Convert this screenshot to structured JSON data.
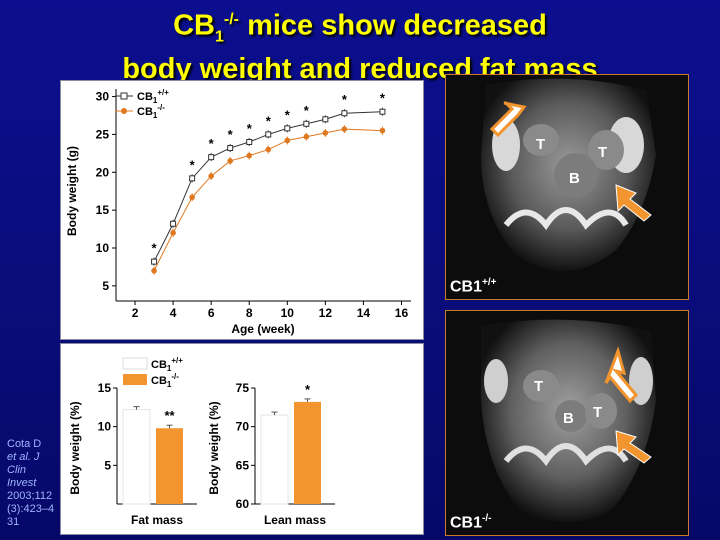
{
  "title": {
    "line1_prefix": "CB",
    "line1_sub": "1",
    "line1_sup": "-/-",
    "line1_suffix": " mice show decreased",
    "line2": "body weight and reduced fat mass"
  },
  "chart_data": [
    {
      "type": "line",
      "xlabel": "Age (week)",
      "ylabel": "Body weight (g)",
      "xlim": [
        1,
        16.5
      ],
      "ylim": [
        3,
        31
      ],
      "xticks": [
        2,
        4,
        6,
        8,
        10,
        12,
        14,
        16
      ],
      "yticks": [
        5,
        10,
        15,
        20,
        25,
        30
      ],
      "x": [
        3,
        4,
        5,
        6,
        7,
        8,
        9,
        10,
        11,
        12,
        13,
        15
      ],
      "series": [
        {
          "name": "CB1+/+",
          "legend_base": "CB",
          "legend_sub": "1",
          "legend_sup": "+/+",
          "marker": "open-square",
          "color": "#333333",
          "values": [
            8.2,
            13.2,
            19.2,
            22.0,
            23.2,
            24.0,
            25.0,
            25.8,
            26.4,
            27.0,
            27.8,
            28.0
          ]
        },
        {
          "name": "CB1-/-",
          "legend_base": "CB",
          "legend_sub": "1",
          "legend_sup": "-/-",
          "marker": "filled-circle",
          "color": "#e07820",
          "values": [
            7.0,
            12.0,
            16.7,
            19.5,
            21.5,
            22.2,
            23.0,
            24.2,
            24.7,
            25.2,
            25.7,
            25.5
          ]
        }
      ],
      "significance": [
        {
          "x": 3,
          "label": "*"
        },
        {
          "x": 5,
          "label": "*"
        },
        {
          "x": 6,
          "label": "*"
        },
        {
          "x": 7,
          "label": "*"
        },
        {
          "x": 8,
          "label": "*"
        },
        {
          "x": 9,
          "label": "*"
        },
        {
          "x": 10,
          "label": "*"
        },
        {
          "x": 11,
          "label": "*"
        },
        {
          "x": 13,
          "label": "*"
        },
        {
          "x": 15,
          "label": "*"
        }
      ]
    },
    {
      "type": "bar",
      "xlabel": "Fat mass",
      "ylabel": "Body weight (%)",
      "ylim": [
        0,
        15
      ],
      "yticks": [
        5,
        10,
        15
      ],
      "series": [
        {
          "name": "CB1+/+",
          "value": 12.2,
          "color": "#ffffff"
        },
        {
          "name": "CB1-/-",
          "value": 9.8,
          "color": "#f3952f",
          "significance": "**"
        }
      ]
    },
    {
      "type": "bar",
      "xlabel": "Lean mass",
      "ylabel": "Body weight (%)",
      "ylim": [
        60,
        75
      ],
      "yticks": [
        60,
        65,
        70,
        75
      ],
      "series": [
        {
          "name": "CB1+/+",
          "value": 71.5,
          "color": "#ffffff"
        },
        {
          "name": "CB1-/-",
          "value": 73.2,
          "color": "#f3952f",
          "significance": "*"
        }
      ]
    }
  ],
  "bar_legend": [
    {
      "base": "CB",
      "sub": "1",
      "sup": "+/+",
      "color": "#ffffff"
    },
    {
      "base": "CB",
      "sub": "1",
      "sup": "-/-",
      "color": "#f3952f"
    }
  ],
  "mri_top": {
    "label_base": "CB1",
    "label_sup": "+/+",
    "labels": [
      "T",
      "T",
      "B"
    ]
  },
  "mri_bottom": {
    "label_base": "CB1",
    "label_sup": "-/-",
    "labels": [
      "T",
      "B",
      "T"
    ]
  },
  "citation": {
    "author": "Cota D",
    "etal": "et al. J Clin Invest",
    "ref": "2003;112(3):423–431"
  },
  "colors": {
    "title": "#ffff00",
    "accent_orange": "#f3952f",
    "background": "#0a0c7a"
  }
}
